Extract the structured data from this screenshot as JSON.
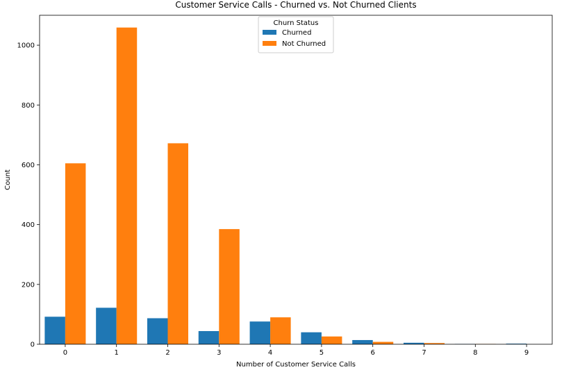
{
  "chart_data": {
    "type": "bar",
    "title": "Customer Service Calls - Churned vs. Not Churned Clients",
    "xlabel": "Number of Customer Service Calls",
    "ylabel": "Count",
    "categories": [
      "0",
      "1",
      "2",
      "3",
      "4",
      "5",
      "6",
      "7",
      "8",
      "9"
    ],
    "series": [
      {
        "name": "Churned",
        "color": "#1f77b4",
        "values": [
          92,
          122,
          87,
          44,
          76,
          40,
          14,
          5,
          1,
          2
        ]
      },
      {
        "name": "Not Churned",
        "color": "#ff7f0e",
        "values": [
          605,
          1059,
          672,
          385,
          90,
          26,
          8,
          4,
          1,
          0
        ]
      }
    ],
    "ylim": [
      0,
      1100
    ],
    "yticks": [
      0,
      200,
      400,
      600,
      800,
      1000
    ],
    "grid": false,
    "legend": {
      "title": "Churn Status",
      "placement": "top-center"
    }
  }
}
